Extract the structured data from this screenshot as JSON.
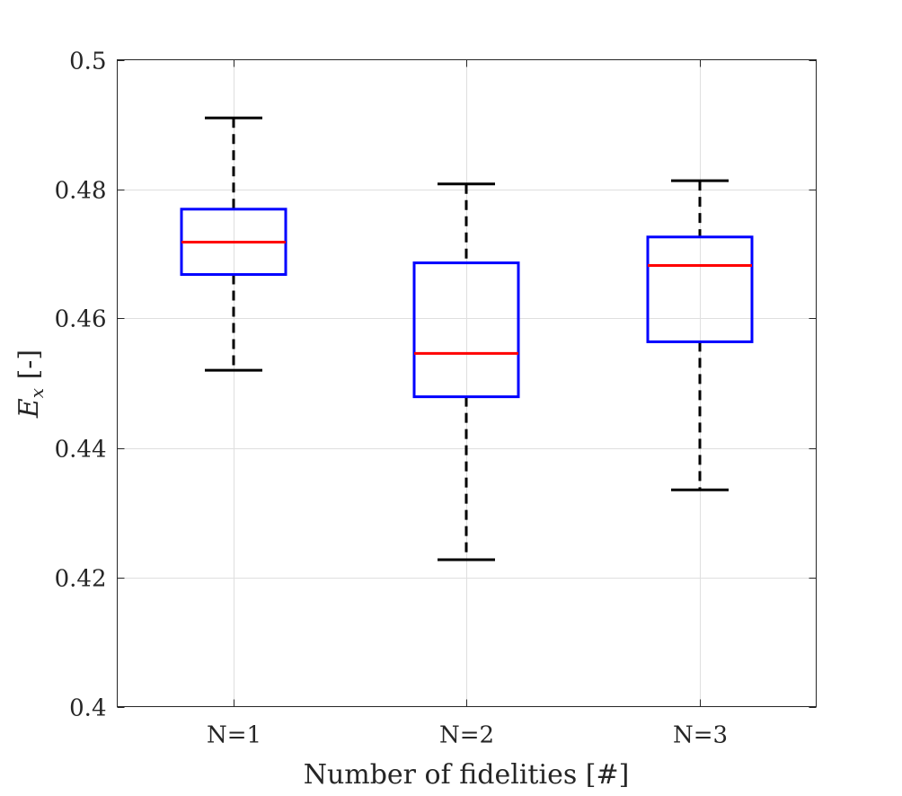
{
  "chart_data": {
    "type": "boxplot",
    "title": "",
    "xlabel": "Number of fidelities [#]",
    "ylabel": {
      "symbol": "E",
      "subscript": "x",
      "unit": "[-]"
    },
    "ylim": [
      0.4,
      0.5
    ],
    "yticks": [
      0.4,
      0.42,
      0.44,
      0.46,
      0.48,
      0.5
    ],
    "ytick_labels": [
      "0.4",
      "0.42",
      "0.44",
      "0.46",
      "0.48",
      "0.5"
    ],
    "categories": [
      "N=1",
      "N=2",
      "N=3"
    ],
    "grid": true,
    "boxes": [
      {
        "category": "N=1",
        "whisker_low": 0.452,
        "q1": 0.4668,
        "median": 0.4718,
        "q3": 0.4769,
        "whisker_high": 0.491
      },
      {
        "category": "N=2",
        "whisker_low": 0.4227,
        "q1": 0.4479,
        "median": 0.4546,
        "q3": 0.4686,
        "whisker_high": 0.4808
      },
      {
        "category": "N=3",
        "whisker_low": 0.4335,
        "q1": 0.4564,
        "median": 0.4682,
        "q3": 0.4726,
        "whisker_high": 0.4813
      }
    ],
    "colors": {
      "box": "#0000ff",
      "median": "#ff0000",
      "whisker": "#000000",
      "grid": "#dfdfdf",
      "axis": "#262626"
    }
  }
}
